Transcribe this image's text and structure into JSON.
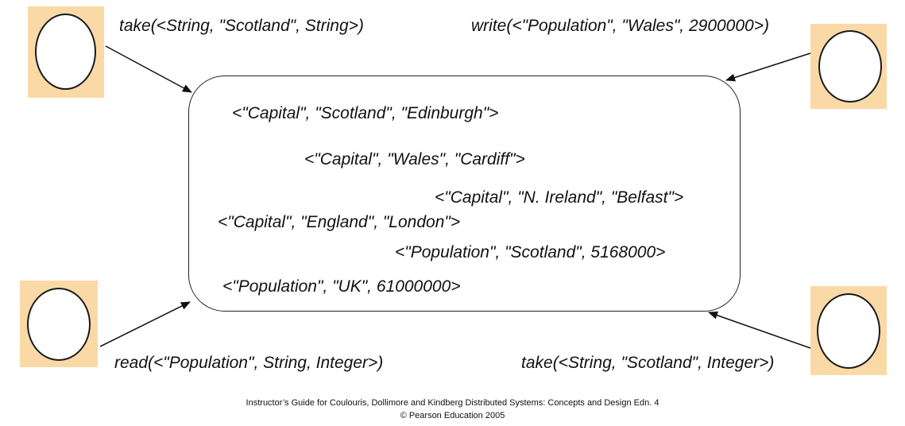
{
  "operations": {
    "top_left": "take(<String, \"Scotland\", String>)",
    "top_right": "write(<\"Population\", \"Wales\", 2900000>)",
    "bottom_left": "read(<\"Population\", String, Integer>)",
    "bottom_right": "take(<String, \"Scotland\", Integer>)"
  },
  "tuples": [
    "<\"Capital\", \"Scotland\", \"Edinburgh\">",
    "<\"Capital\", \"Wales\", \"Cardiff\">",
    "<\"Capital\", \"N. Ireland\", \"Belfast\">",
    "<\"Capital\", \"England\", \"London\">",
    "<\"Population\", \"Scotland\", 5168000>",
    "<\"Population\", \"UK\", 61000000>"
  ],
  "footer": {
    "line1": "Instructor’s Guide for  Coulouris, Dollimore and Kindberg   Distributed Systems: Concepts and Design   Edn. 4",
    "line2": "©  Pearson Education 2005"
  },
  "colors": {
    "process_box": "#fbd9a6",
    "stroke": "#1a1a1a"
  }
}
